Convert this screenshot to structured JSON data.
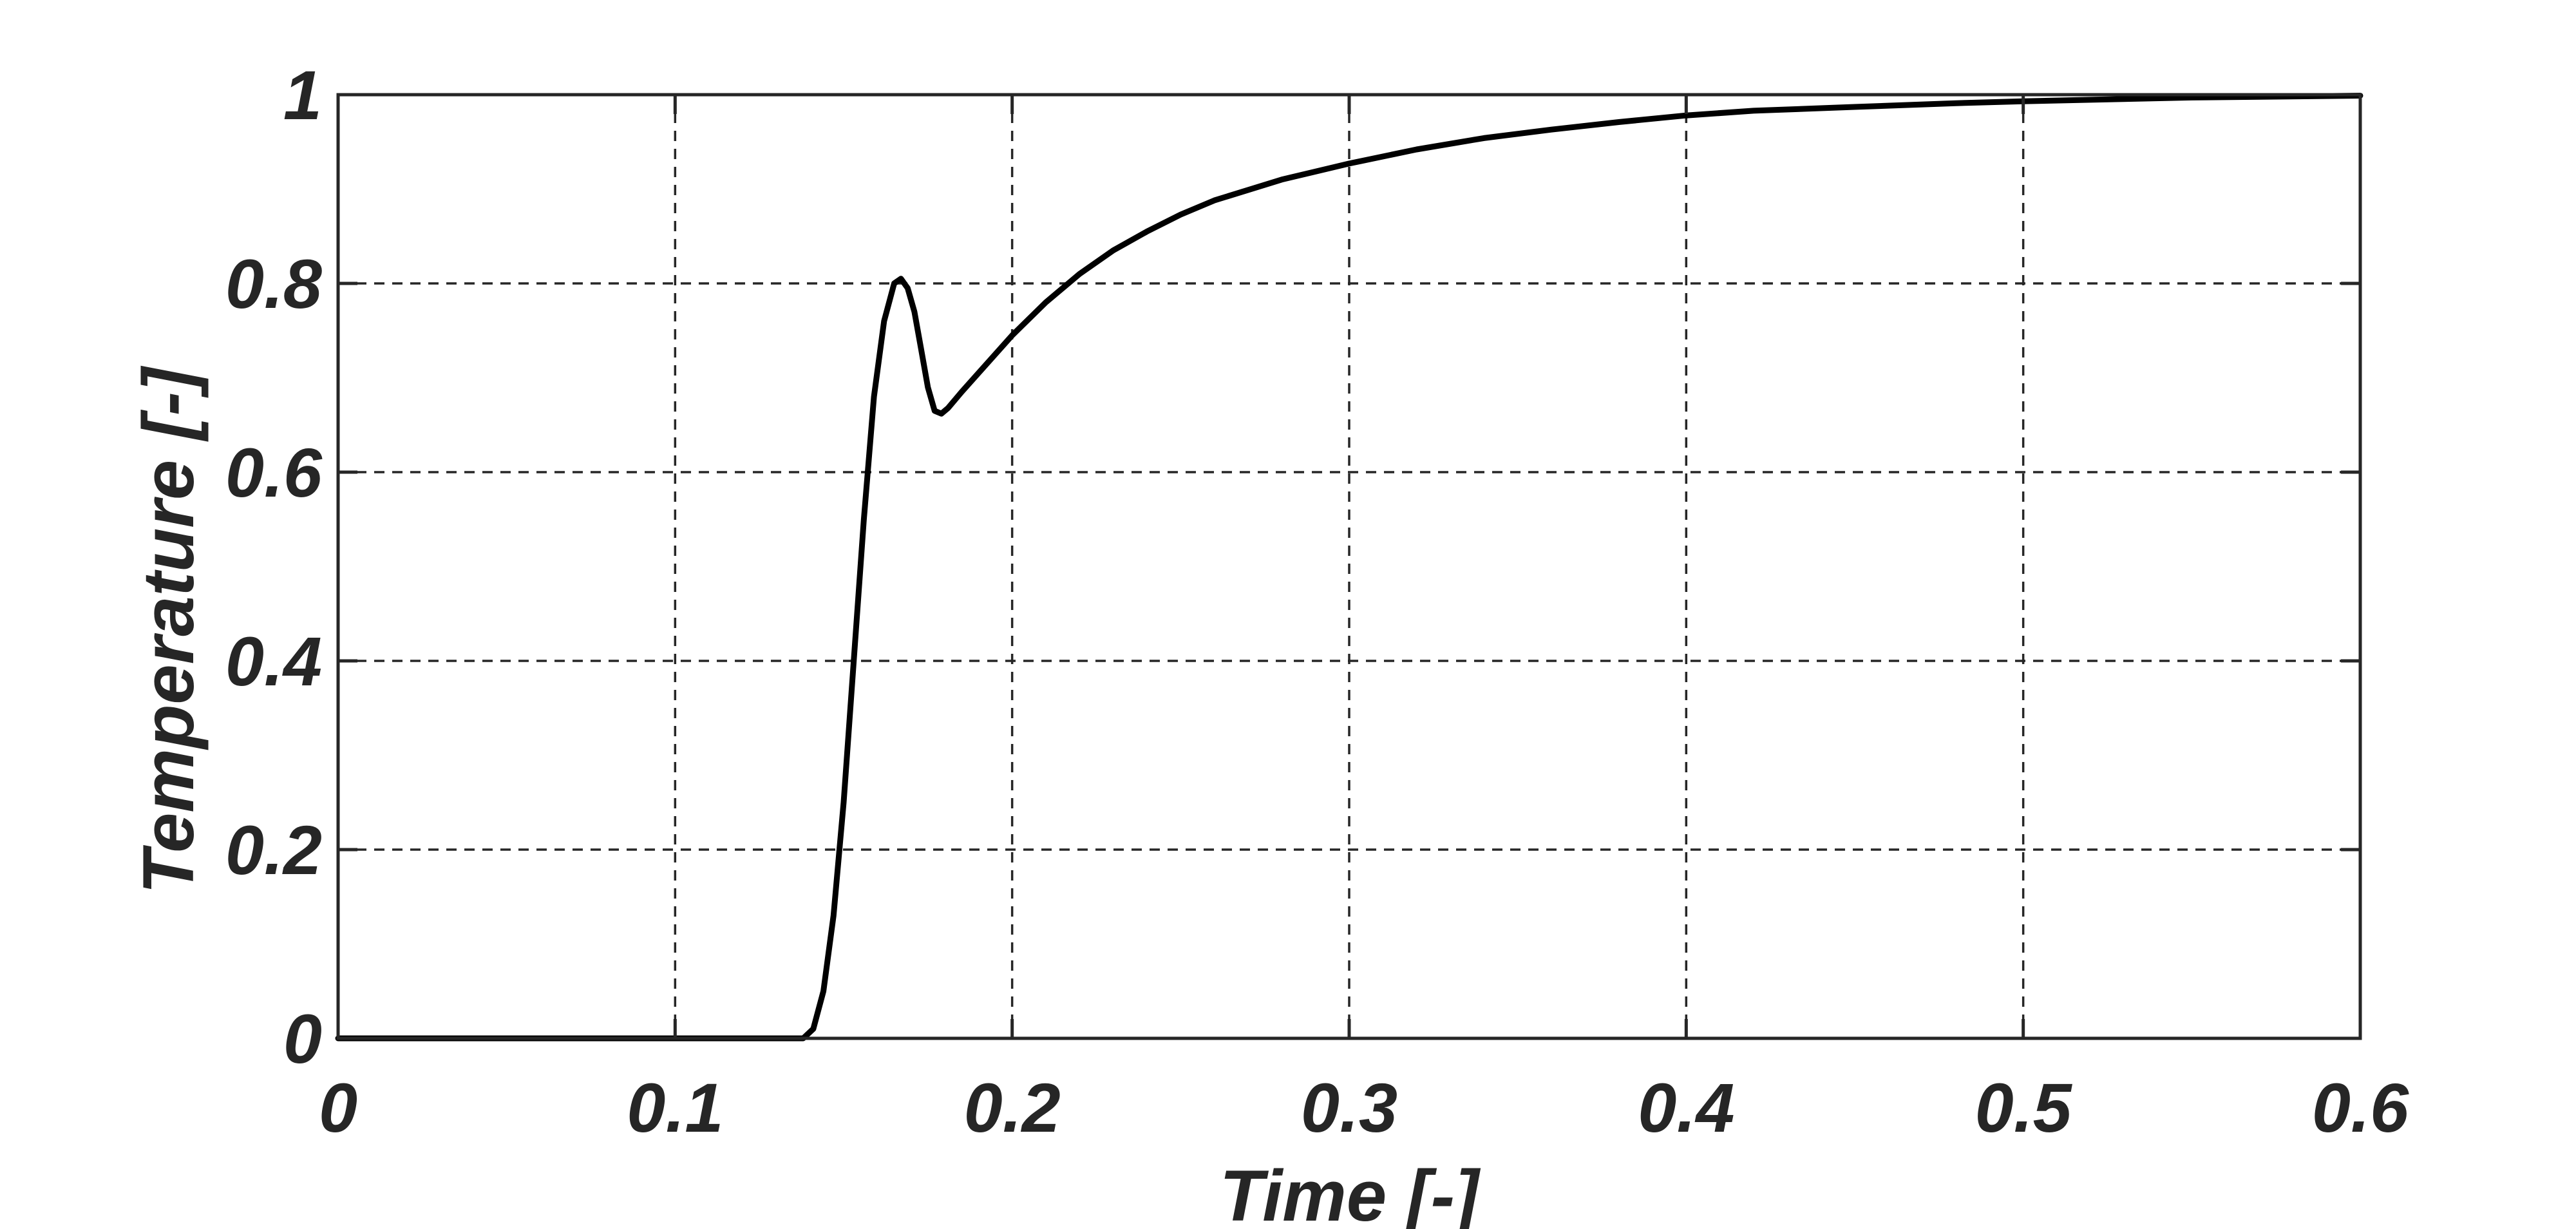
{
  "chart_data": {
    "type": "line",
    "xlabel": "Time [-]",
    "ylabel": "Temperature [-]",
    "xlim": [
      0,
      0.6
    ],
    "ylim": [
      0,
      1
    ],
    "xticks": [
      0,
      0.1,
      0.2,
      0.3,
      0.4,
      0.5,
      0.6
    ],
    "yticks": [
      0,
      0.2,
      0.4,
      0.6,
      0.8,
      1
    ],
    "xtick_labels": [
      "0",
      "0.1",
      "0.2",
      "0.3",
      "0.4",
      "0.5",
      "0.6"
    ],
    "ytick_labels": [
      "0",
      "0.2",
      "0.4",
      "0.6",
      "0.8",
      "1"
    ],
    "grid": true,
    "series": [
      {
        "color": "#000000",
        "x": [
          0,
          0.05,
          0.1,
          0.13,
          0.138,
          0.141,
          0.144,
          0.147,
          0.15,
          0.153,
          0.156,
          0.159,
          0.162,
          0.165,
          0.167,
          0.169,
          0.171,
          0.173,
          0.175,
          0.177,
          0.179,
          0.181,
          0.185,
          0.19,
          0.2,
          0.21,
          0.22,
          0.23,
          0.24,
          0.25,
          0.26,
          0.28,
          0.3,
          0.32,
          0.34,
          0.36,
          0.38,
          0.4,
          0.42,
          0.45,
          0.48,
          0.5,
          0.55,
          0.6
        ],
        "y": [
          0,
          0,
          0,
          0,
          0,
          0.01,
          0.05,
          0.13,
          0.25,
          0.4,
          0.55,
          0.68,
          0.76,
          0.8,
          0.805,
          0.795,
          0.77,
          0.73,
          0.69,
          0.665,
          0.662,
          0.668,
          0.685,
          0.705,
          0.745,
          0.78,
          0.81,
          0.835,
          0.855,
          0.873,
          0.888,
          0.91,
          0.927,
          0.942,
          0.954,
          0.963,
          0.971,
          0.978,
          0.983,
          0.987,
          0.991,
          0.993,
          0.997,
          0.999
        ]
      }
    ]
  }
}
